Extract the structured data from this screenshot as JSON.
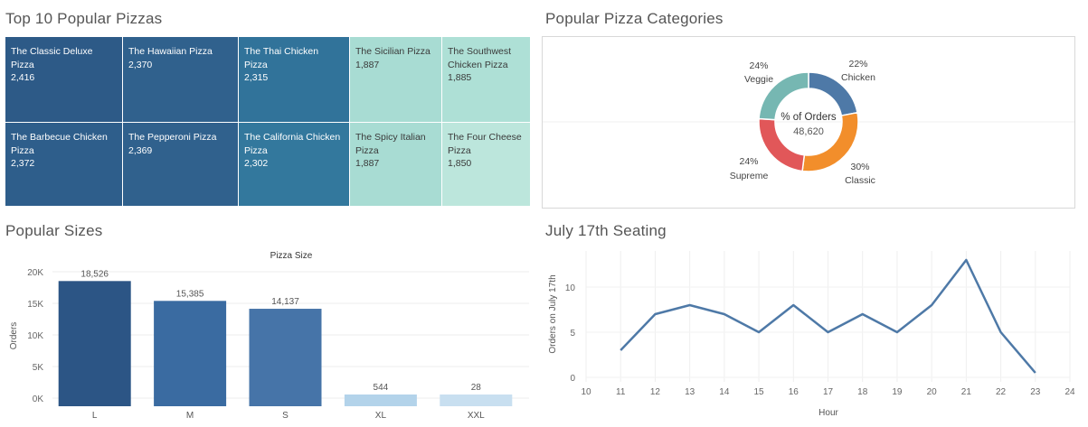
{
  "panels": {
    "treemap_title": "Top 10 Popular Pizzas",
    "donut_title": "Popular Pizza Categories",
    "bar_title": "Popular Sizes",
    "line_title": "July 17th Seating"
  },
  "treemap": {
    "tiles": [
      {
        "name": "The Classic Deluxe Pizza",
        "value": "2,416",
        "color": "#2d5a87",
        "tone": "dark"
      },
      {
        "name": "The Barbecue Chicken Pizza",
        "value": "2,372",
        "color": "#2e5e8b",
        "tone": "dark"
      },
      {
        "name": "The Hawaiian Pizza",
        "value": "2,370",
        "color": "#30618d",
        "tone": "dark"
      },
      {
        "name": "The Pepperoni Pizza",
        "value": "2,369",
        "color": "#30618d",
        "tone": "dark"
      },
      {
        "name": "The Thai Chicken Pizza",
        "value": "2,315",
        "color": "#31739a",
        "tone": "dark"
      },
      {
        "name": "The California Chicken Pizza",
        "value": "2,302",
        "color": "#33789d",
        "tone": "dark"
      },
      {
        "name": "The Sicilian Pizza",
        "value": "1,887",
        "color": "#a8dcd3",
        "tone": "light"
      },
      {
        "name": "The Spicy Italian Pizza",
        "value": "1,887",
        "color": "#a8dcd3",
        "tone": "light"
      },
      {
        "name": "The Southwest Chicken Pizza",
        "value": "1,885",
        "color": "#aee0d6",
        "tone": "light"
      },
      {
        "name": "The Four Cheese Pizza",
        "value": "1,850",
        "color": "#bce6dc",
        "tone": "light"
      }
    ]
  },
  "chart_data": [
    {
      "type": "pie",
      "center_label": "% of Orders",
      "center_value": "48,620",
      "slices": [
        {
          "name": "Chicken",
          "percent": "22%",
          "value": 22,
          "color": "#4e79a7"
        },
        {
          "name": "Classic",
          "percent": "30%",
          "value": 30,
          "color": "#f28e2b"
        },
        {
          "name": "Supreme",
          "percent": "24%",
          "value": 24,
          "color": "#e15759"
        },
        {
          "name": "Veggie",
          "percent": "24%",
          "value": 24,
          "color": "#76b7b2"
        }
      ]
    },
    {
      "type": "bar",
      "title": "Pizza Size",
      "ylabel": "Orders",
      "categories": [
        "L",
        "M",
        "S",
        "XL",
        "XXL"
      ],
      "values": [
        18526,
        15385,
        14137,
        544,
        28
      ],
      "value_labels": [
        "18,526",
        "15,385",
        "14,137",
        "544",
        "28"
      ],
      "ylim": [
        0,
        20000
      ],
      "yticks": [
        0,
        5000,
        10000,
        15000,
        20000
      ],
      "ytick_labels": [
        "0K",
        "5K",
        "10K",
        "15K",
        "20K"
      ],
      "colors": [
        "#2c5585",
        "#3a6ba1",
        "#4674a8",
        "#b3d3ea",
        "#c8dff0"
      ]
    },
    {
      "type": "line",
      "xlabel": "Hour",
      "ylabel": "Orders on July 17th",
      "x": [
        11,
        12,
        13,
        14,
        15,
        16,
        17,
        18,
        19,
        20,
        21,
        22,
        23
      ],
      "y": [
        3,
        7,
        8,
        7,
        5,
        8,
        5,
        7,
        5,
        8,
        13,
        5,
        0.5
      ],
      "xlim": [
        10,
        24
      ],
      "xticks": [
        10,
        11,
        12,
        13,
        14,
        15,
        16,
        17,
        18,
        19,
        20,
        21,
        22,
        23,
        24
      ],
      "ylim": [
        -1,
        14
      ],
      "yticks": [
        0,
        5,
        10
      ],
      "color": "#4e79a7"
    }
  ]
}
